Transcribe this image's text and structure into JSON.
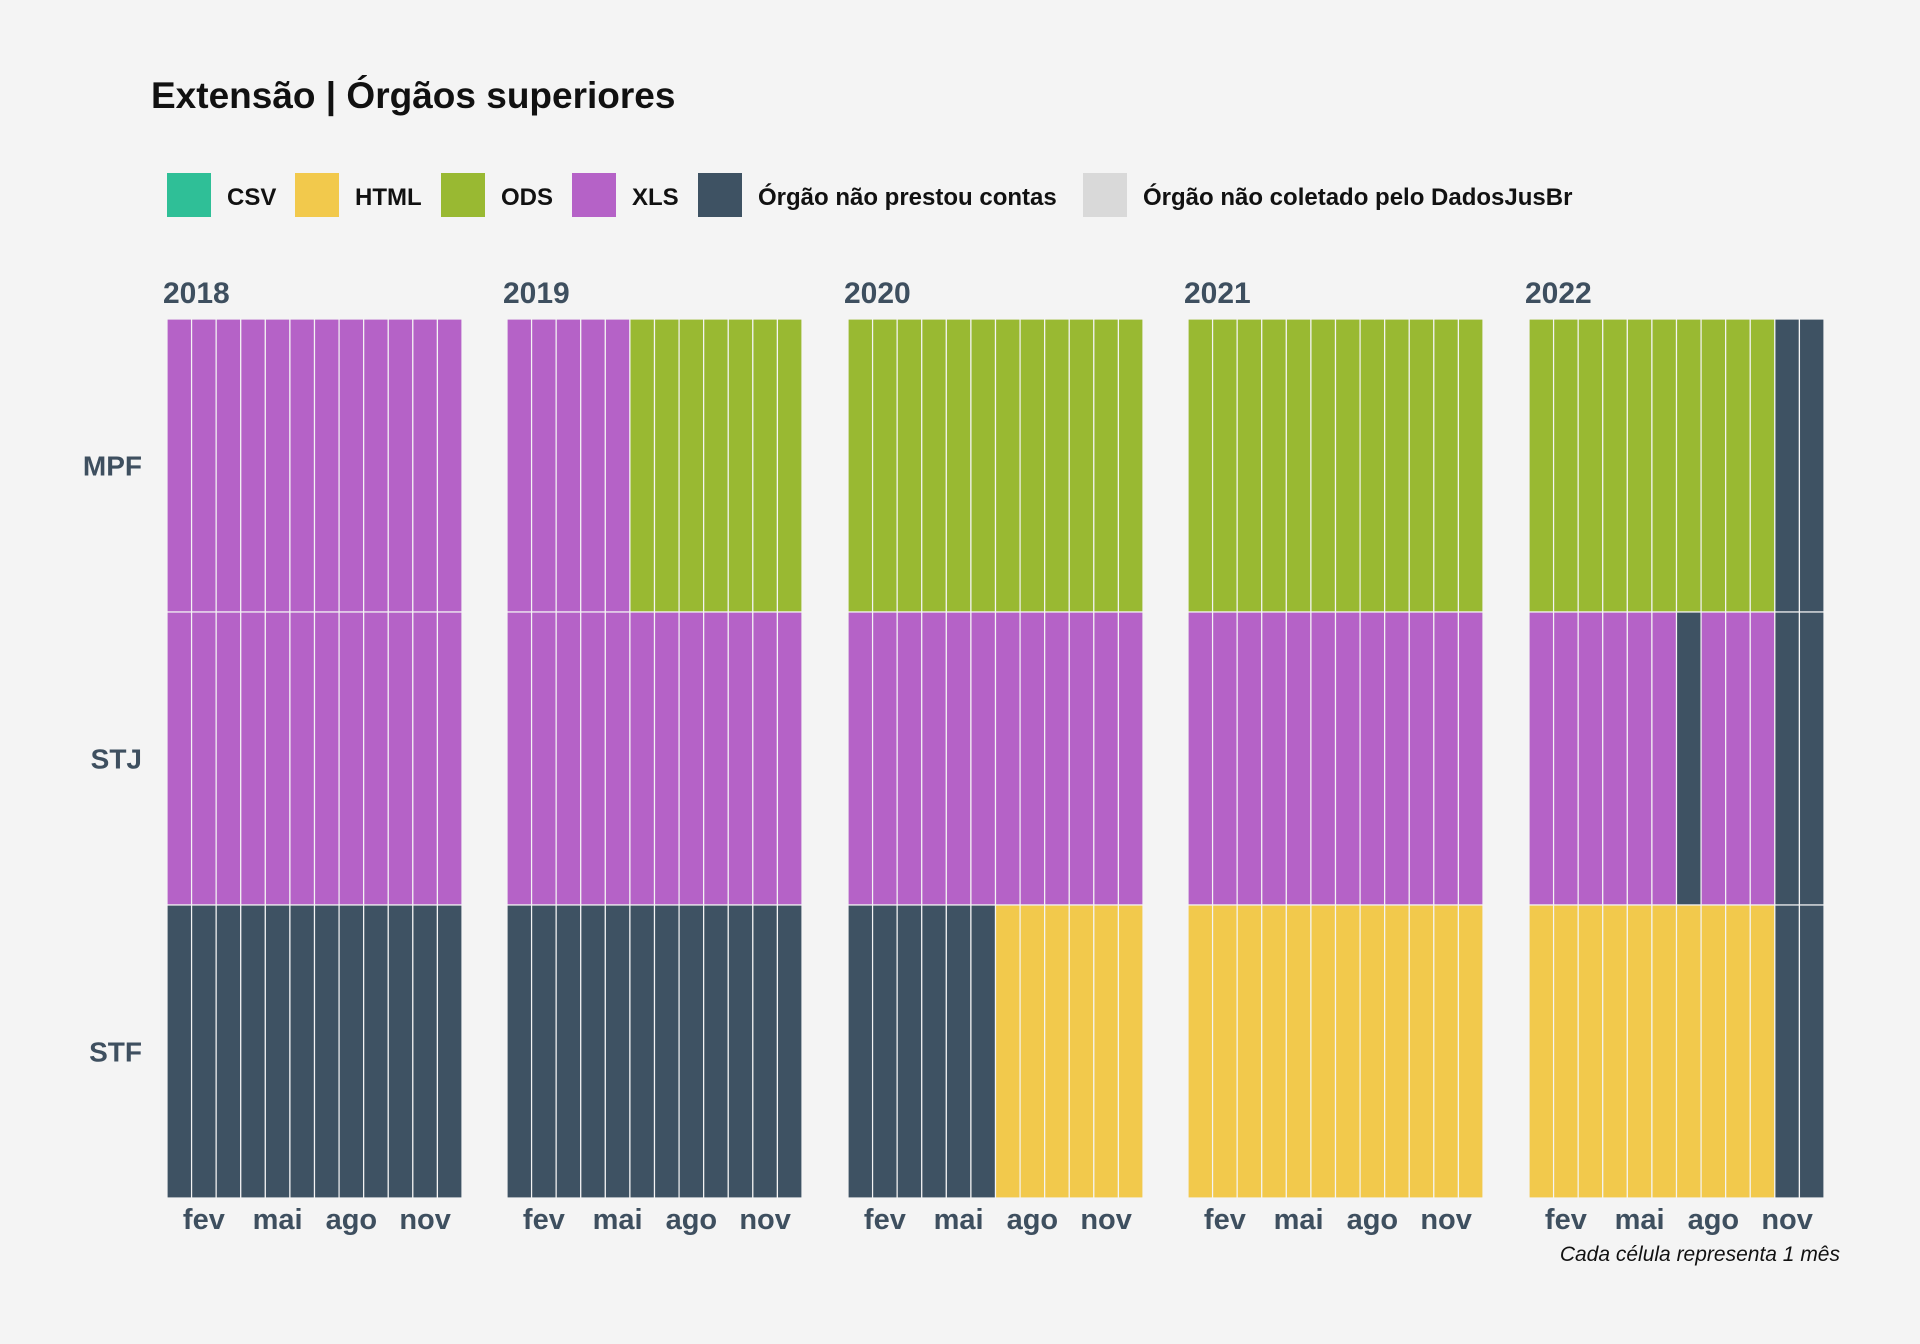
{
  "chart_data": {
    "type": "heatmap",
    "title": "Extensão | Órgãos superiores",
    "caption": "Cada célula representa 1 mês",
    "legend_position": "top",
    "grid": false,
    "categories": [
      {
        "key": "CSV",
        "label": "CSV",
        "color": "#2fbf97"
      },
      {
        "key": "HTML",
        "label": "HTML",
        "color": "#f2c94c"
      },
      {
        "key": "ODS",
        "label": "ODS",
        "color": "#99b932"
      },
      {
        "key": "XLS",
        "label": "XLS",
        "color": "#b562c7"
      },
      {
        "key": "NP",
        "label": "Órgão não prestou contas",
        "color": "#3e5263"
      },
      {
        "key": "NC",
        "label": "Órgão não coletado pelo DadosJusBr",
        "color": "#d9d9d9"
      }
    ],
    "rows": [
      "MPF",
      "STJ",
      "STF"
    ],
    "months": [
      1,
      2,
      3,
      4,
      5,
      6,
      7,
      8,
      9,
      10,
      11,
      12
    ],
    "x_ticks": [
      {
        "month": 2,
        "label": "fev"
      },
      {
        "month": 5,
        "label": "mai"
      },
      {
        "month": 8,
        "label": "ago"
      },
      {
        "month": 11,
        "label": "nov"
      }
    ],
    "facets": [
      {
        "year": "2018",
        "cells": {
          "MPF": [
            "XLS",
            "XLS",
            "XLS",
            "XLS",
            "XLS",
            "XLS",
            "XLS",
            "XLS",
            "XLS",
            "XLS",
            "XLS",
            "XLS"
          ],
          "STJ": [
            "XLS",
            "XLS",
            "XLS",
            "XLS",
            "XLS",
            "XLS",
            "XLS",
            "XLS",
            "XLS",
            "XLS",
            "XLS",
            "XLS"
          ],
          "STF": [
            "NP",
            "NP",
            "NP",
            "NP",
            "NP",
            "NP",
            "NP",
            "NP",
            "NP",
            "NP",
            "NP",
            "NP"
          ]
        }
      },
      {
        "year": "2019",
        "cells": {
          "MPF": [
            "XLS",
            "XLS",
            "XLS",
            "XLS",
            "XLS",
            "ODS",
            "ODS",
            "ODS",
            "ODS",
            "ODS",
            "ODS",
            "ODS"
          ],
          "STJ": [
            "XLS",
            "XLS",
            "XLS",
            "XLS",
            "XLS",
            "XLS",
            "XLS",
            "XLS",
            "XLS",
            "XLS",
            "XLS",
            "XLS"
          ],
          "STF": [
            "NP",
            "NP",
            "NP",
            "NP",
            "NP",
            "NP",
            "NP",
            "NP",
            "NP",
            "NP",
            "NP",
            "NP"
          ]
        }
      },
      {
        "year": "2020",
        "cells": {
          "MPF": [
            "ODS",
            "ODS",
            "ODS",
            "ODS",
            "ODS",
            "ODS",
            "ODS",
            "ODS",
            "ODS",
            "ODS",
            "ODS",
            "ODS"
          ],
          "STJ": [
            "XLS",
            "XLS",
            "XLS",
            "XLS",
            "XLS",
            "XLS",
            "XLS",
            "XLS",
            "XLS",
            "XLS",
            "XLS",
            "XLS"
          ],
          "STF": [
            "NP",
            "NP",
            "NP",
            "NP",
            "NP",
            "NP",
            "HTML",
            "HTML",
            "HTML",
            "HTML",
            "HTML",
            "HTML"
          ]
        }
      },
      {
        "year": "2021",
        "cells": {
          "MPF": [
            "ODS",
            "ODS",
            "ODS",
            "ODS",
            "ODS",
            "ODS",
            "ODS",
            "ODS",
            "ODS",
            "ODS",
            "ODS",
            "ODS"
          ],
          "STJ": [
            "XLS",
            "XLS",
            "XLS",
            "XLS",
            "XLS",
            "XLS",
            "XLS",
            "XLS",
            "XLS",
            "XLS",
            "XLS",
            "XLS"
          ],
          "STF": [
            "HTML",
            "HTML",
            "HTML",
            "HTML",
            "HTML",
            "HTML",
            "HTML",
            "HTML",
            "HTML",
            "HTML",
            "HTML",
            "HTML"
          ]
        }
      },
      {
        "year": "2022",
        "cells": {
          "MPF": [
            "ODS",
            "ODS",
            "ODS",
            "ODS",
            "ODS",
            "ODS",
            "ODS",
            "ODS",
            "ODS",
            "ODS",
            "NP",
            "NP"
          ],
          "STJ": [
            "XLS",
            "XLS",
            "XLS",
            "XLS",
            "XLS",
            "XLS",
            "NP",
            "XLS",
            "XLS",
            "XLS",
            "NP",
            "NP"
          ],
          "STF": [
            "HTML",
            "HTML",
            "HTML",
            "HTML",
            "HTML",
            "HTML",
            "HTML",
            "HTML",
            "HTML",
            "HTML",
            "NP",
            "NP"
          ]
        }
      }
    ]
  }
}
